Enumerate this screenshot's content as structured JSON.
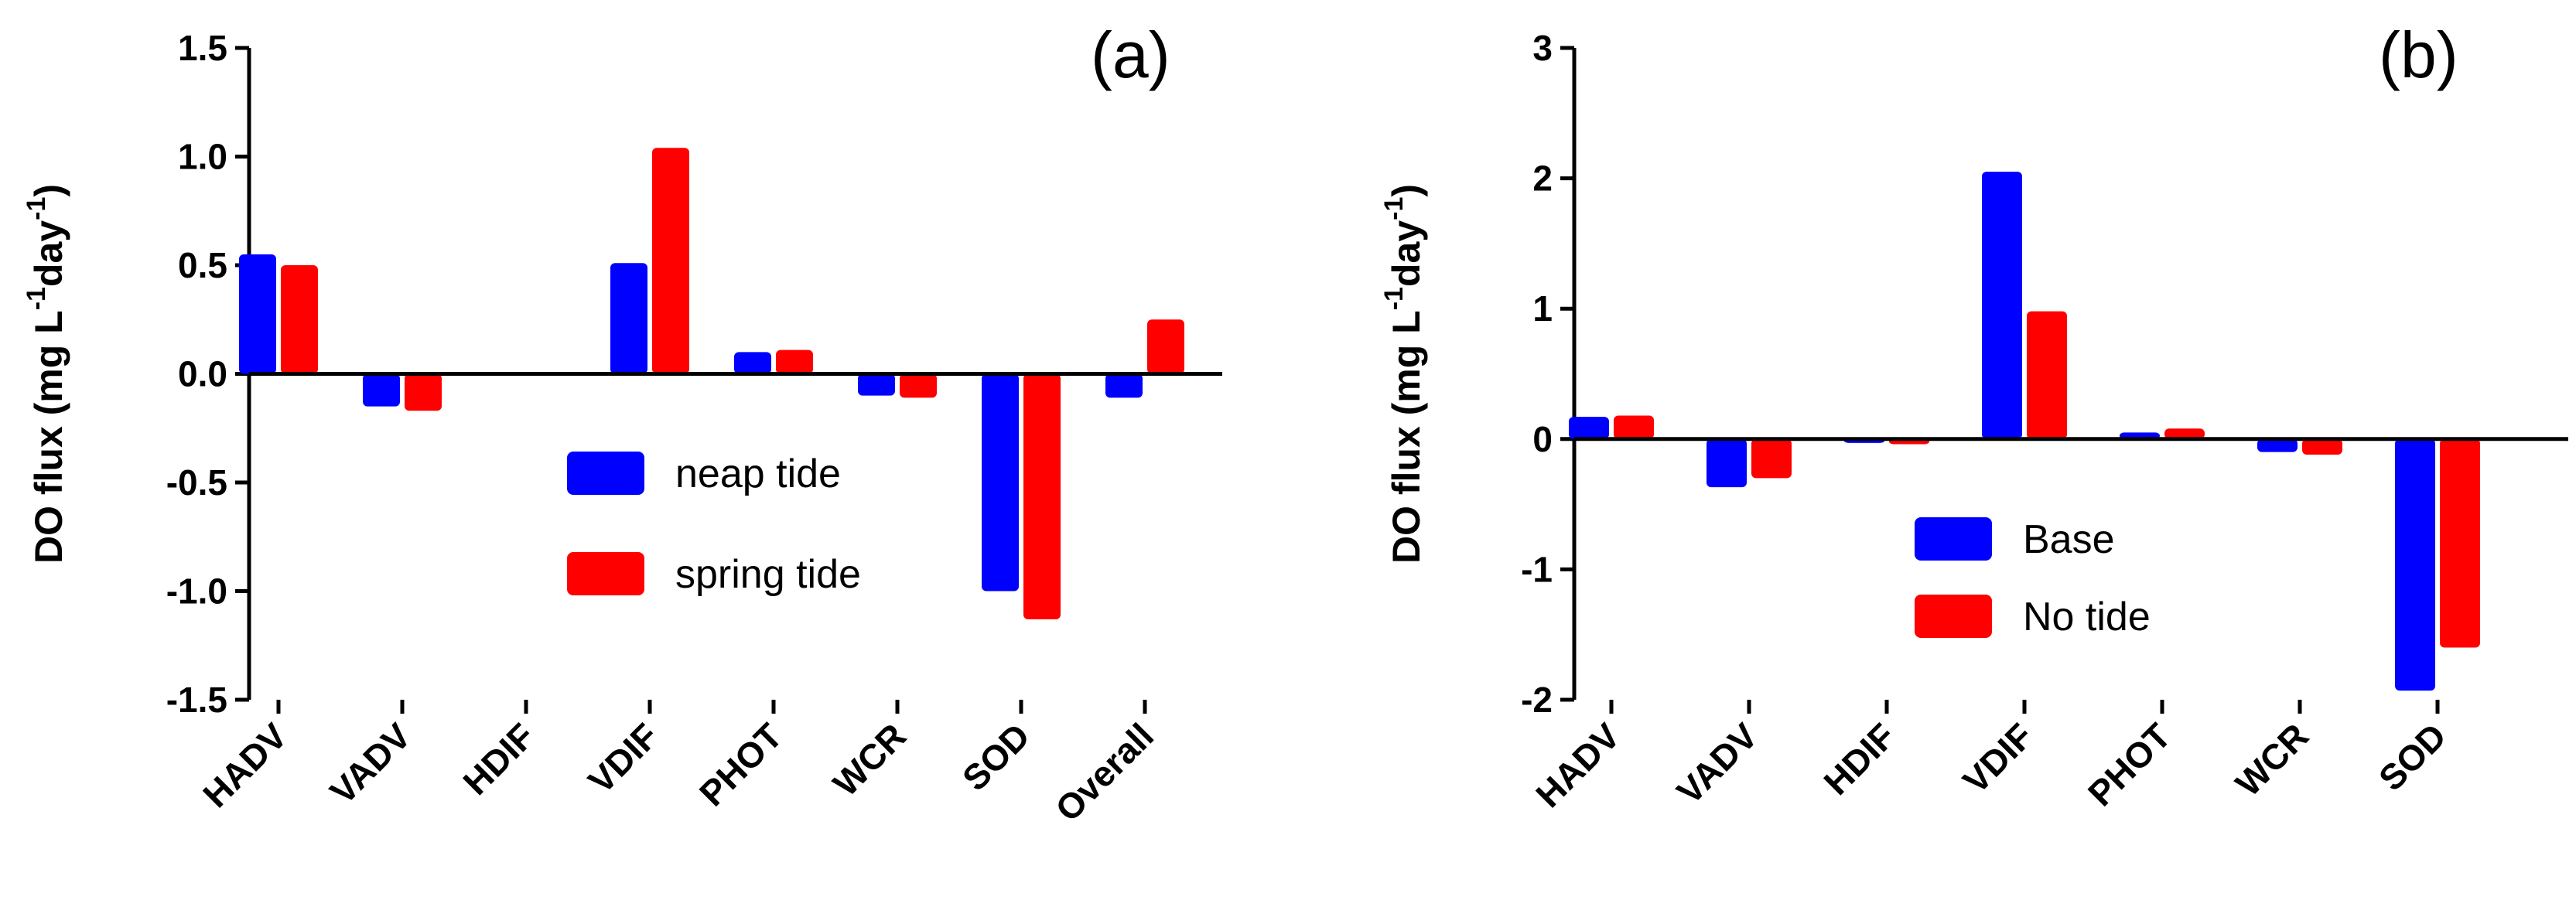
{
  "chart_data": [
    {
      "type": "bar",
      "panel_label": "(a)",
      "title": "",
      "xlabel": "",
      "ylabel_main": "DO flux (mg L",
      "ylabel_exp1": "-1",
      "ylabel_mid": "day",
      "ylabel_exp2": "-1",
      "ylabel_end": ")",
      "ylim": [
        -1.5,
        1.5
      ],
      "yticks": [
        -1.5,
        -1.0,
        -0.5,
        0.0,
        0.5,
        1.0,
        1.5
      ],
      "ytick_labels": [
        "-1.5",
        "-1.0",
        "-0.5",
        "0.0",
        "0.5",
        "1.0",
        "1.5"
      ],
      "categories": [
        "HADV",
        "VADV",
        "HDIF",
        "VDIF",
        "PHOT",
        "WCR",
        "SOD",
        "Overall"
      ],
      "series": [
        {
          "name": "neap tide",
          "color": "#0000ff",
          "values": [
            0.55,
            -0.15,
            0.0,
            0.51,
            0.1,
            -0.1,
            -1.0,
            -0.11
          ]
        },
        {
          "name": "spring tide",
          "color": "#ff0000",
          "values": [
            0.5,
            -0.17,
            0.0,
            1.04,
            0.11,
            -0.11,
            -1.13,
            0.25
          ]
        }
      ],
      "legend_position": "center-right"
    },
    {
      "type": "bar",
      "panel_label": "(b)",
      "title": "",
      "xlabel": "",
      "ylabel_main": "DO flux (mg L",
      "ylabel_exp1": "-1",
      "ylabel_mid": "day",
      "ylabel_exp2": "-1",
      "ylabel_end": ")",
      "ylim": [
        -2,
        3
      ],
      "yticks": [
        -2,
        -1,
        0,
        1,
        2,
        3
      ],
      "ytick_labels": [
        "-2",
        "-1",
        "0",
        "1",
        "2",
        "3"
      ],
      "categories": [
        "HADV",
        "VADV",
        "HDIF",
        "VDIF",
        "PHOT",
        "WCR",
        "SOD"
      ],
      "series": [
        {
          "name": "Base",
          "color": "#0000ff",
          "values": [
            0.17,
            -0.37,
            -0.03,
            2.05,
            0.05,
            -0.1,
            -1.93
          ]
        },
        {
          "name": "No tide",
          "color": "#ff0000",
          "values": [
            0.18,
            -0.3,
            -0.04,
            0.98,
            0.08,
            -0.12,
            -1.6
          ]
        }
      ],
      "legend_position": "center"
    }
  ]
}
